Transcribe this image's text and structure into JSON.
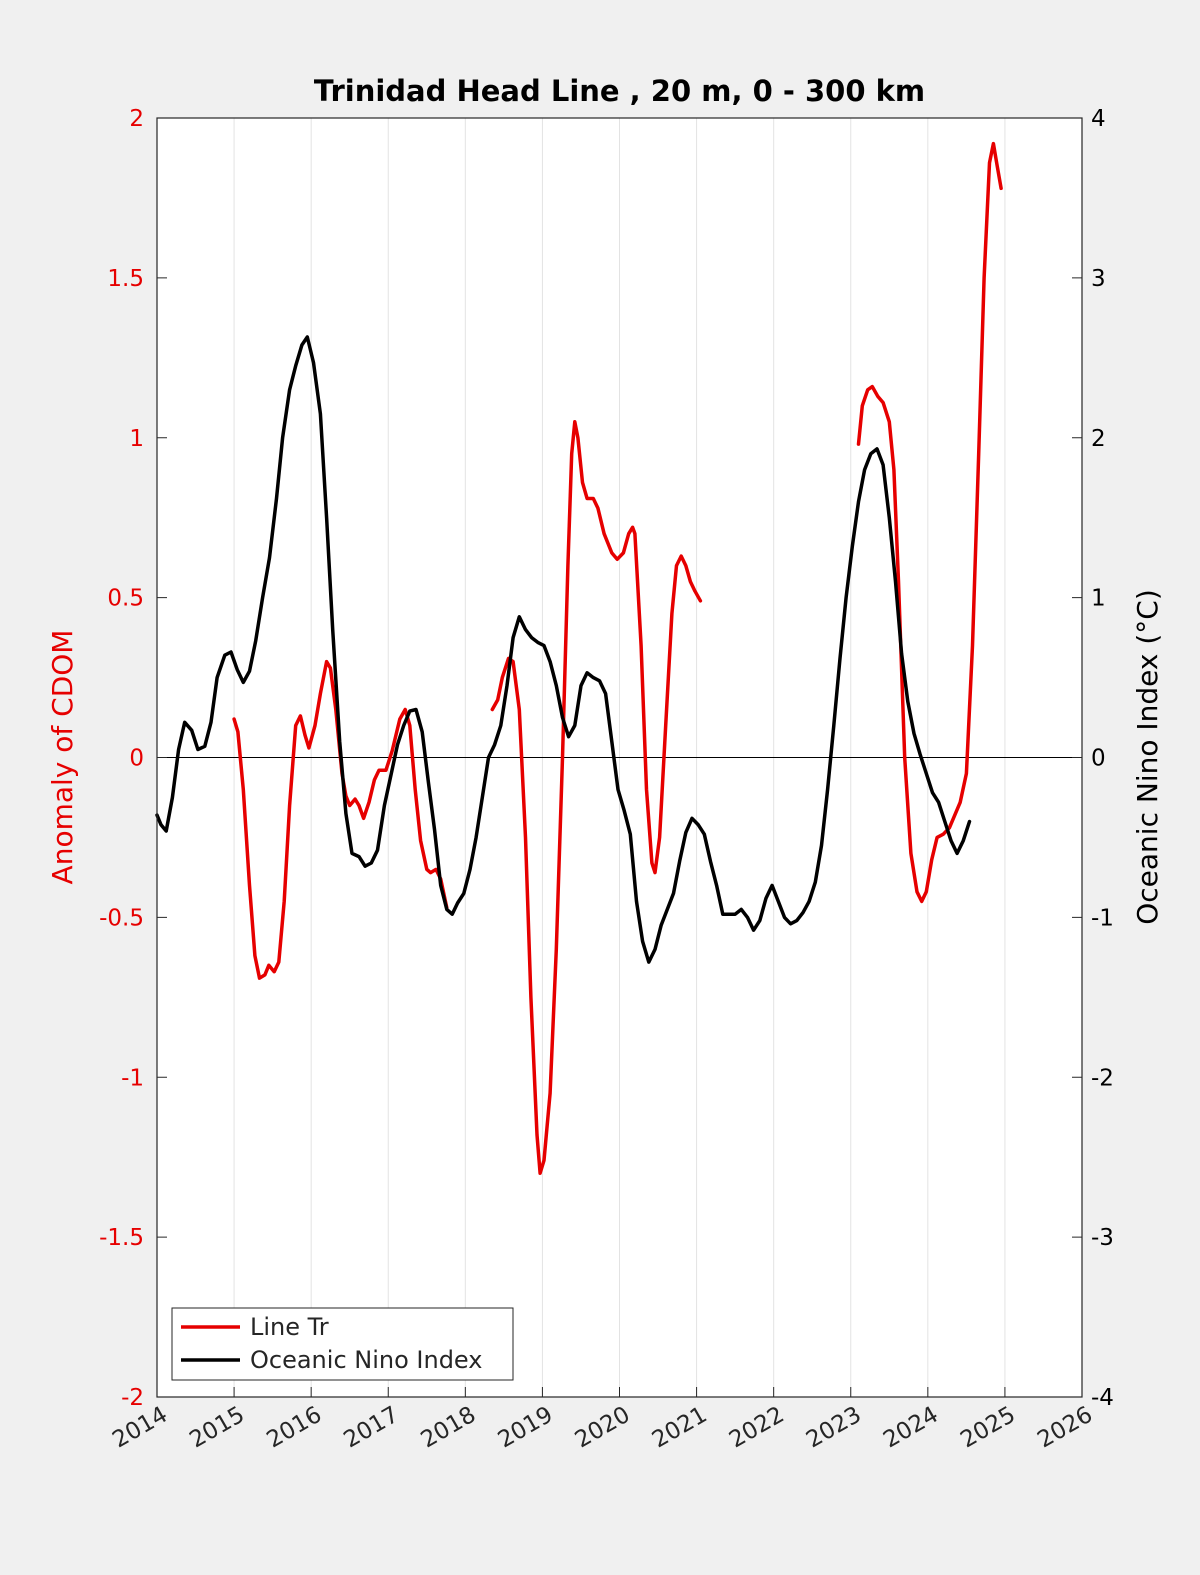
{
  "chart_data": {
    "type": "line",
    "title": "Trinidad Head Line , 20 m, 0 - 300 km",
    "xlim": [
      2014,
      2026
    ],
    "x_ticks": [
      "2014",
      "2015",
      "2016",
      "2017",
      "2018",
      "2019",
      "2020",
      "2021",
      "2022",
      "2023",
      "2024",
      "2025",
      "2026"
    ],
    "x_grid": true,
    "y_left": {
      "label": "Anomaly of CDOM",
      "lim": [
        -2,
        2
      ],
      "ticks": [
        "2",
        "1.5",
        "1",
        "0.5",
        "0",
        "-0.5",
        "-1",
        "-1.5",
        "-2"
      ],
      "color": "#e60000"
    },
    "y_right": {
      "label": "Oceanic Nino Index (°C)",
      "lim": [
        -4,
        4
      ],
      "ticks": [
        "4",
        "3",
        "2",
        "1",
        "0",
        "-1",
        "-2",
        "-3",
        "-4"
      ],
      "color": "#000000"
    },
    "zero_line": true,
    "legend_position": "bottom-left",
    "series": [
      {
        "name": "Line Tr",
        "axis": "left",
        "color": "#e60000",
        "segments": [
          [
            [
              2015.0,
              0.12
            ],
            [
              2015.05,
              0.08
            ],
            [
              2015.12,
              -0.1
            ],
            [
              2015.2,
              -0.4
            ],
            [
              2015.27,
              -0.62
            ],
            [
              2015.33,
              -0.69
            ],
            [
              2015.4,
              -0.68
            ],
            [
              2015.45,
              -0.65
            ],
            [
              2015.52,
              -0.67
            ],
            [
              2015.58,
              -0.64
            ],
            [
              2015.65,
              -0.45
            ],
            [
              2015.72,
              -0.15
            ],
            [
              2015.8,
              0.1
            ],
            [
              2015.86,
              0.13
            ],
            [
              2015.92,
              0.07
            ],
            [
              2015.97,
              0.03
            ],
            [
              2016.05,
              0.1
            ],
            [
              2016.12,
              0.2
            ],
            [
              2016.2,
              0.3
            ],
            [
              2016.25,
              0.28
            ],
            [
              2016.32,
              0.15
            ],
            [
              2016.4,
              -0.05
            ],
            [
              2016.45,
              -0.12
            ],
            [
              2016.5,
              -0.15
            ],
            [
              2016.57,
              -0.13
            ],
            [
              2016.62,
              -0.15
            ],
            [
              2016.68,
              -0.19
            ],
            [
              2016.75,
              -0.14
            ],
            [
              2016.82,
              -0.07
            ],
            [
              2016.88,
              -0.04
            ],
            [
              2016.97,
              -0.04
            ],
            [
              2017.05,
              0.02
            ],
            [
              2017.15,
              0.12
            ],
            [
              2017.22,
              0.15
            ],
            [
              2017.28,
              0.1
            ],
            [
              2017.35,
              -0.1
            ],
            [
              2017.42,
              -0.26
            ],
            [
              2017.5,
              -0.35
            ],
            [
              2017.55,
              -0.36
            ],
            [
              2017.62,
              -0.35
            ],
            [
              2017.68,
              -0.38
            ],
            [
              2017.76,
              -0.47
            ]
          ],
          [
            [
              2018.35,
              0.15
            ],
            [
              2018.42,
              0.18
            ],
            [
              2018.48,
              0.25
            ],
            [
              2018.56,
              0.31
            ],
            [
              2018.62,
              0.3
            ],
            [
              2018.7,
              0.15
            ],
            [
              2018.78,
              -0.25
            ],
            [
              2018.85,
              -0.75
            ],
            [
              2018.93,
              -1.18
            ],
            [
              2018.97,
              -1.3
            ],
            [
              2019.02,
              -1.26
            ],
            [
              2019.1,
              -1.05
            ],
            [
              2019.18,
              -0.6
            ],
            [
              2019.26,
              0.0
            ],
            [
              2019.33,
              0.6
            ],
            [
              2019.38,
              0.95
            ],
            [
              2019.42,
              1.05
            ],
            [
              2019.46,
              1.0
            ],
            [
              2019.52,
              0.86
            ],
            [
              2019.58,
              0.81
            ],
            [
              2019.66,
              0.81
            ],
            [
              2019.72,
              0.78
            ],
            [
              2019.8,
              0.7
            ],
            [
              2019.9,
              0.64
            ],
            [
              2019.97,
              0.62
            ],
            [
              2020.05,
              0.64
            ],
            [
              2020.12,
              0.7
            ],
            [
              2020.17,
              0.72
            ],
            [
              2020.2,
              0.7
            ],
            [
              2020.28,
              0.35
            ],
            [
              2020.35,
              -0.1
            ],
            [
              2020.42,
              -0.33
            ],
            [
              2020.46,
              -0.36
            ],
            [
              2020.52,
              -0.25
            ],
            [
              2020.6,
              0.1
            ],
            [
              2020.68,
              0.45
            ],
            [
              2020.74,
              0.6
            ],
            [
              2020.8,
              0.63
            ],
            [
              2020.86,
              0.6
            ],
            [
              2020.92,
              0.55
            ],
            [
              2020.98,
              0.52
            ],
            [
              2021.05,
              0.49
            ]
          ],
          [
            [
              2023.1,
              0.98
            ],
            [
              2023.15,
              1.1
            ],
            [
              2023.22,
              1.15
            ],
            [
              2023.28,
              1.16
            ],
            [
              2023.35,
              1.13
            ],
            [
              2023.42,
              1.11
            ],
            [
              2023.5,
              1.05
            ],
            [
              2023.56,
              0.9
            ],
            [
              2023.62,
              0.55
            ],
            [
              2023.7,
              0.0
            ],
            [
              2023.78,
              -0.3
            ],
            [
              2023.86,
              -0.42
            ],
            [
              2023.92,
              -0.45
            ],
            [
              2023.98,
              -0.42
            ],
            [
              2024.05,
              -0.32
            ],
            [
              2024.12,
              -0.25
            ],
            [
              2024.2,
              -0.24
            ],
            [
              2024.28,
              -0.22
            ],
            [
              2024.35,
              -0.18
            ],
            [
              2024.42,
              -0.14
            ],
            [
              2024.5,
              -0.05
            ],
            [
              2024.58,
              0.35
            ],
            [
              2024.66,
              0.95
            ],
            [
              2024.73,
              1.5
            ],
            [
              2024.8,
              1.86
            ],
            [
              2024.85,
              1.92
            ],
            [
              2024.9,
              1.85
            ],
            [
              2024.95,
              1.78
            ]
          ]
        ]
      },
      {
        "name": "Oceanic Nino Index",
        "axis": "right",
        "color": "#000000",
        "segments": [
          [
            [
              2014.0,
              -0.36
            ],
            [
              2014.05,
              -0.42
            ],
            [
              2014.12,
              -0.46
            ],
            [
              2014.2,
              -0.25
            ],
            [
              2014.28,
              0.05
            ],
            [
              2014.36,
              0.22
            ],
            [
              2014.45,
              0.17
            ],
            [
              2014.53,
              0.05
            ],
            [
              2014.62,
              0.07
            ],
            [
              2014.7,
              0.22
            ],
            [
              2014.78,
              0.5
            ],
            [
              2014.88,
              0.64
            ],
            [
              2014.96,
              0.66
            ],
            [
              2015.04,
              0.55
            ],
            [
              2015.12,
              0.47
            ],
            [
              2015.2,
              0.54
            ],
            [
              2015.28,
              0.73
            ],
            [
              2015.37,
              1.0
            ],
            [
              2015.46,
              1.25
            ],
            [
              2015.55,
              1.62
            ],
            [
              2015.63,
              2.0
            ],
            [
              2015.72,
              2.3
            ],
            [
              2015.8,
              2.45
            ],
            [
              2015.88,
              2.58
            ],
            [
              2015.95,
              2.63
            ],
            [
              2016.03,
              2.47
            ],
            [
              2016.12,
              2.15
            ],
            [
              2016.2,
              1.5
            ],
            [
              2016.28,
              0.8
            ],
            [
              2016.37,
              0.1
            ],
            [
              2016.45,
              -0.35
            ],
            [
              2016.53,
              -0.6
            ],
            [
              2016.62,
              -0.62
            ],
            [
              2016.7,
              -0.68
            ],
            [
              2016.78,
              -0.66
            ],
            [
              2016.86,
              -0.58
            ],
            [
              2016.95,
              -0.3
            ],
            [
              2017.03,
              -0.12
            ],
            [
              2017.12,
              0.08
            ],
            [
              2017.2,
              0.2
            ],
            [
              2017.28,
              0.29
            ],
            [
              2017.36,
              0.3
            ],
            [
              2017.44,
              0.16
            ],
            [
              2017.52,
              -0.15
            ],
            [
              2017.6,
              -0.45
            ],
            [
              2017.68,
              -0.8
            ],
            [
              2017.76,
              -0.95
            ],
            [
              2017.83,
              -0.98
            ],
            [
              2017.9,
              -0.91
            ],
            [
              2017.98,
              -0.85
            ],
            [
              2018.06,
              -0.7
            ],
            [
              2018.14,
              -0.5
            ],
            [
              2018.22,
              -0.25
            ],
            [
              2018.3,
              0.0
            ],
            [
              2018.38,
              0.08
            ],
            [
              2018.46,
              0.2
            ],
            [
              2018.54,
              0.45
            ],
            [
              2018.62,
              0.75
            ],
            [
              2018.7,
              0.88
            ],
            [
              2018.78,
              0.8
            ],
            [
              2018.86,
              0.75
            ],
            [
              2018.94,
              0.72
            ],
            [
              2019.02,
              0.7
            ],
            [
              2019.1,
              0.6
            ],
            [
              2019.18,
              0.45
            ],
            [
              2019.26,
              0.25
            ],
            [
              2019.34,
              0.13
            ],
            [
              2019.42,
              0.2
            ],
            [
              2019.5,
              0.45
            ],
            [
              2019.58,
              0.53
            ],
            [
              2019.66,
              0.5
            ],
            [
              2019.74,
              0.48
            ],
            [
              2019.82,
              0.4
            ],
            [
              2019.9,
              0.1
            ],
            [
              2019.98,
              -0.2
            ],
            [
              2020.06,
              -0.33
            ],
            [
              2020.14,
              -0.48
            ],
            [
              2020.22,
              -0.9
            ],
            [
              2020.3,
              -1.15
            ],
            [
              2020.38,
              -1.28
            ],
            [
              2020.46,
              -1.2
            ],
            [
              2020.54,
              -1.05
            ],
            [
              2020.62,
              -0.95
            ],
            [
              2020.7,
              -0.85
            ],
            [
              2020.78,
              -0.65
            ],
            [
              2020.86,
              -0.47
            ],
            [
              2020.94,
              -0.38
            ],
            [
              2021.02,
              -0.42
            ],
            [
              2021.1,
              -0.48
            ],
            [
              2021.18,
              -0.65
            ],
            [
              2021.26,
              -0.8
            ],
            [
              2021.34,
              -0.98
            ],
            [
              2021.42,
              -0.98
            ],
            [
              2021.5,
              -0.98
            ],
            [
              2021.58,
              -0.95
            ],
            [
              2021.66,
              -1.0
            ],
            [
              2021.74,
              -1.08
            ],
            [
              2021.82,
              -1.02
            ],
            [
              2021.9,
              -0.88
            ],
            [
              2021.98,
              -0.8
            ],
            [
              2022.06,
              -0.9
            ],
            [
              2022.14,
              -1.0
            ],
            [
              2022.22,
              -1.04
            ],
            [
              2022.3,
              -1.02
            ],
            [
              2022.38,
              -0.97
            ],
            [
              2022.46,
              -0.9
            ],
            [
              2022.54,
              -0.78
            ],
            [
              2022.62,
              -0.55
            ],
            [
              2022.7,
              -0.2
            ],
            [
              2022.78,
              0.2
            ],
            [
              2022.86,
              0.62
            ],
            [
              2022.94,
              1.0
            ],
            [
              2023.02,
              1.32
            ],
            [
              2023.1,
              1.6
            ],
            [
              2023.18,
              1.8
            ],
            [
              2023.26,
              1.9
            ],
            [
              2023.34,
              1.93
            ],
            [
              2023.42,
              1.83
            ],
            [
              2023.5,
              1.5
            ],
            [
              2023.58,
              1.1
            ],
            [
              2023.66,
              0.65
            ],
            [
              2023.74,
              0.35
            ],
            [
              2023.82,
              0.15
            ],
            [
              2023.9,
              0.02
            ],
            [
              2023.98,
              -0.1
            ],
            [
              2024.06,
              -0.22
            ],
            [
              2024.14,
              -0.28
            ],
            [
              2024.22,
              -0.4
            ],
            [
              2024.3,
              -0.52
            ],
            [
              2024.38,
              -0.6
            ],
            [
              2024.46,
              -0.52
            ],
            [
              2024.54,
              -0.4
            ]
          ]
        ]
      }
    ]
  }
}
